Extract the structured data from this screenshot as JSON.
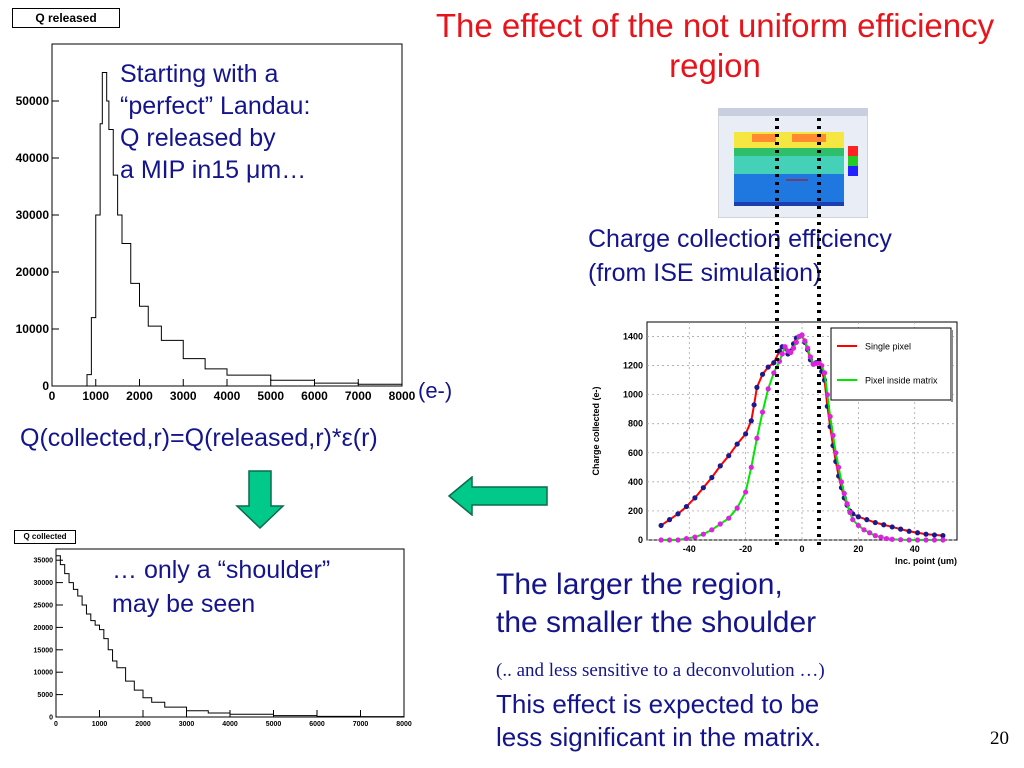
{
  "slide": {
    "title": "The effect of the not uniform efficiency region",
    "note_landau": "Starting with a\n“perfect” Landau:\nQ released by\na MIP in15 μm…",
    "formula": "Q(collected,r)=Q(released,r)*ε(r)",
    "note_shoulder": "… only a “shoulder”\nmay be seen",
    "cce_label": "Charge collection efficiency\n(from ISE simulation)",
    "conclusion": "The larger the region,\nthe smaller the shoulder",
    "parenthetical": "(.. and less sensitive to a deconvolution …)",
    "conclusion2": "This effect is expected to be\nless significant in the matrix.",
    "page_number": "20",
    "unit_label": "(e-)",
    "colors": {
      "title": "#e8141b",
      "text": "#14148c",
      "arrow": "#00c98a",
      "single": "#ff0000",
      "matrix": "#00e600"
    }
  },
  "chart_data": [
    {
      "type": "histogram",
      "title": "Q released",
      "xlim": [
        0,
        8000
      ],
      "ylim": [
        0,
        60000
      ],
      "x_ticks": [
        0,
        1000,
        2000,
        3000,
        4000,
        5000,
        6000,
        7000,
        8000
      ],
      "y_ticks": [
        0,
        10000,
        20000,
        30000,
        40000,
        50000
      ],
      "x": [
        650,
        800,
        900,
        1000,
        1100,
        1150,
        1200,
        1250,
        1300,
        1400,
        1500,
        1600,
        1800,
        2000,
        2200,
        2500,
        3000,
        3500,
        4000,
        5000,
        6000,
        7000,
        8000
      ],
      "values": [
        0,
        2000,
        12000,
        30000,
        46000,
        55000,
        55000,
        50000,
        45000,
        37000,
        30000,
        25000,
        18000,
        14000,
        10500,
        8000,
        4800,
        3000,
        1900,
        1000,
        500,
        300,
        150
      ]
    },
    {
      "type": "histogram",
      "title": "Q collected",
      "xlim": [
        0,
        8000
      ],
      "ylim": [
        0,
        37500
      ],
      "x_ticks": [
        0,
        1000,
        2000,
        3000,
        4000,
        5000,
        6000,
        7000,
        8000
      ],
      "y_ticks": [
        0,
        5000,
        10000,
        15000,
        20000,
        25000,
        30000,
        35000
      ],
      "x": [
        0,
        100,
        200,
        300,
        400,
        500,
        600,
        700,
        800,
        900,
        1000,
        1100,
        1200,
        1300,
        1400,
        1600,
        1800,
        2000,
        2200,
        2500,
        3000,
        3500,
        4000,
        5000,
        6000,
        7000,
        8000
      ],
      "values": [
        36000,
        34000,
        32000,
        30000,
        28500,
        27000,
        25000,
        23000,
        21500,
        20500,
        19500,
        17500,
        15000,
        12500,
        11000,
        8000,
        6000,
        4300,
        3300,
        2200,
        1400,
        900,
        600,
        300,
        150,
        80,
        30
      ]
    },
    {
      "type": "line",
      "title": "",
      "xlabel": "Inc. point (um)",
      "ylabel": "Charge collected (e-)",
      "xlim": [
        -55,
        55
      ],
      "ylim": [
        0,
        1500
      ],
      "x_ticks": [
        -40,
        -20,
        0,
        20,
        40
      ],
      "y_ticks": [
        0,
        200,
        400,
        600,
        800,
        1000,
        1200,
        1400
      ],
      "legend_position": "top-right",
      "series": [
        {
          "name": "Single pixel",
          "x": [
            -50,
            -47,
            -44,
            -41,
            -38,
            -35,
            -32,
            -29,
            -26,
            -23,
            -20,
            -18,
            -17,
            -16,
            -14,
            -12,
            -10,
            -8,
            -7,
            -6,
            -5,
            -4,
            -3,
            -2,
            -1,
            0,
            1,
            2,
            3,
            4,
            5,
            6,
            7,
            8,
            9,
            10,
            11,
            12,
            13,
            14,
            15,
            16,
            17,
            18,
            20,
            23,
            26,
            29,
            32,
            35,
            38,
            41,
            44,
            47,
            50
          ],
          "values": [
            100,
            140,
            180,
            230,
            290,
            360,
            430,
            510,
            580,
            660,
            730,
            820,
            930,
            1050,
            1140,
            1190,
            1220,
            1300,
            1330,
            1320,
            1280,
            1300,
            1350,
            1390,
            1400,
            1410,
            1360,
            1310,
            1240,
            1210,
            1220,
            1230,
            1160,
            1100,
            920,
            780,
            650,
            540,
            440,
            360,
            290,
            240,
            200,
            180,
            160,
            140,
            120,
            105,
            90,
            75,
            60,
            50,
            40,
            35,
            30
          ]
        },
        {
          "name": "Pixel inside matrix",
          "x": [
            -50,
            -47,
            -44,
            -41,
            -38,
            -35,
            -32,
            -29,
            -26,
            -23,
            -20,
            -18,
            -16,
            -14,
            -12,
            -10,
            -8,
            -7,
            -6,
            -5,
            -4,
            -3,
            -2,
            -1,
            0,
            1,
            2,
            3,
            4,
            5,
            6,
            7,
            8,
            9,
            10,
            11,
            12,
            13,
            14,
            15,
            16,
            17,
            18,
            20,
            22,
            24,
            26,
            28,
            30,
            32,
            35,
            38,
            41,
            44,
            47,
            50
          ],
          "values": [
            0,
            0,
            0,
            10,
            20,
            40,
            70,
            110,
            150,
            220,
            330,
            500,
            700,
            880,
            1040,
            1150,
            1230,
            1280,
            1330,
            1300,
            1290,
            1320,
            1360,
            1400,
            1410,
            1370,
            1320,
            1260,
            1210,
            1215,
            1220,
            1200,
            1150,
            1000,
            850,
            720,
            600,
            500,
            400,
            320,
            250,
            190,
            140,
            100,
            70,
            50,
            30,
            20,
            10,
            5,
            2,
            0,
            0,
            0,
            0,
            0
          ]
        }
      ]
    }
  ]
}
